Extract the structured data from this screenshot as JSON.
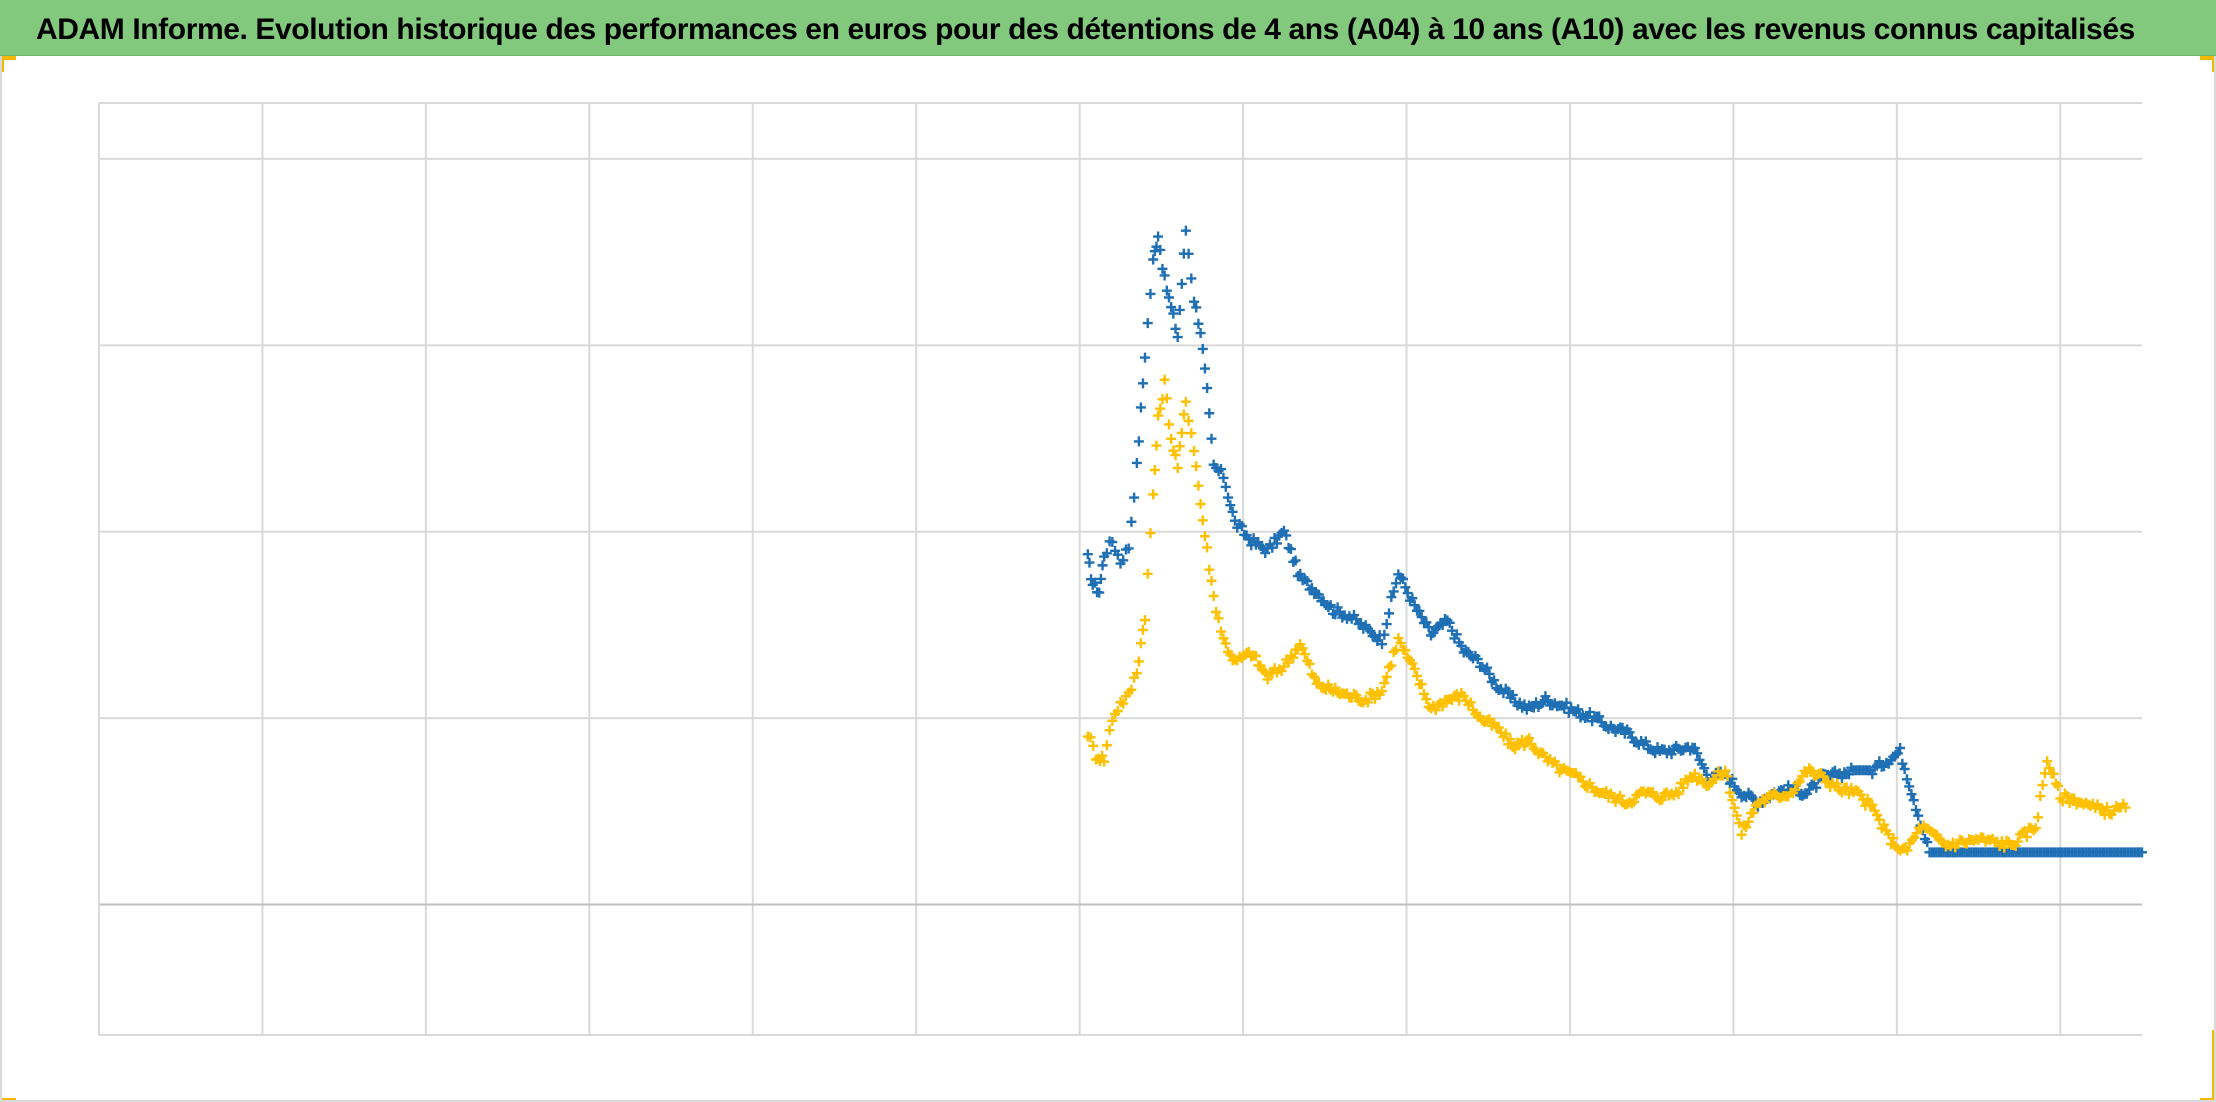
{
  "title": "ADAM Informe. Evolution historique des performances en euros pour des détentions de 4 ans (A04) à 10 ans (A10) avec les revenus connus capitalisés",
  "colors": {
    "title_background": "#82c97e",
    "corner_accent": "#f5b800",
    "gridline": "#d9d9d9",
    "axis_line": "#bfbfbf"
  },
  "chart_data": {
    "type": "scatter",
    "title": "ADAM Informe. Evolution historique des performances en euros pour des détentions de 4 ans (A04) à 10 ans (A10) avec les revenus connus capitalisés",
    "xlabel": "",
    "ylabel": "",
    "xlim": [
      0,
      12.5
    ],
    "ylim": [
      -0.7,
      4.3
    ],
    "x_gridlines": 13,
    "y_gridlines": [
      0,
      1,
      2,
      3,
      4
    ],
    "grid": true,
    "legend": "none",
    "marker": "plus",
    "series": [
      {
        "color": "#1f6fb5",
        "x": [
          6.05,
          6.08,
          6.12,
          6.15,
          6.2,
          6.25,
          6.3,
          6.35,
          6.4,
          6.45,
          6.48,
          6.52,
          6.56,
          6.6,
          6.65,
          6.7,
          6.74,
          6.78,
          6.82,
          6.88,
          6.95,
          7.05,
          7.15,
          7.25,
          7.35,
          7.45,
          7.55,
          7.65,
          7.75,
          7.85,
          7.95,
          8.05,
          8.15,
          8.25,
          8.35,
          8.45,
          8.55,
          8.65,
          8.75,
          8.85,
          8.95,
          9.05,
          9.15,
          9.25,
          9.35,
          9.45,
          9.55,
          9.65,
          9.75,
          9.85,
          9.95,
          10.05,
          10.15,
          10.25,
          10.35,
          10.45,
          10.55,
          10.65,
          10.75,
          10.85,
          10.95,
          11.02,
          11.2,
          11.5,
          11.8,
          12.1,
          12.4,
          12.5
        ],
        "y": [
          1.86,
          1.72,
          1.68,
          1.88,
          1.95,
          1.84,
          1.92,
          2.35,
          2.95,
          3.45,
          3.6,
          3.35,
          3.2,
          3.05,
          3.62,
          3.25,
          3.08,
          2.75,
          2.35,
          2.3,
          2.05,
          1.95,
          1.9,
          2.0,
          1.75,
          1.68,
          1.58,
          1.55,
          1.48,
          1.42,
          1.78,
          1.6,
          1.45,
          1.52,
          1.36,
          1.3,
          1.18,
          1.1,
          1.05,
          1.1,
          1.07,
          1.03,
          1.0,
          0.95,
          0.92,
          0.86,
          0.82,
          0.83,
          0.85,
          0.68,
          0.7,
          0.6,
          0.55,
          0.6,
          0.62,
          0.6,
          0.68,
          0.7,
          0.72,
          0.72,
          0.78,
          0.82,
          0.28,
          0.28,
          0.28,
          0.28,
          0.28,
          0.28
        ]
      },
      {
        "color": "#ffc000",
        "x": [
          6.05,
          6.1,
          6.15,
          6.2,
          6.25,
          6.3,
          6.35,
          6.4,
          6.45,
          6.48,
          6.52,
          6.56,
          6.6,
          6.65,
          6.7,
          6.74,
          6.78,
          6.82,
          6.88,
          6.95,
          7.05,
          7.15,
          7.25,
          7.35,
          7.45,
          7.55,
          7.65,
          7.75,
          7.85,
          7.95,
          8.05,
          8.15,
          8.25,
          8.35,
          8.45,
          8.55,
          8.65,
          8.75,
          8.85,
          8.95,
          9.05,
          9.15,
          9.25,
          9.35,
          9.45,
          9.55,
          9.65,
          9.75,
          9.85,
          9.95,
          10.05,
          10.15,
          10.25,
          10.35,
          10.45,
          10.55,
          10.65,
          10.75,
          10.85,
          10.95,
          11.05,
          11.15,
          11.3,
          11.5,
          11.7,
          11.85,
          11.92,
          12.0,
          12.1,
          12.2,
          12.3,
          12.4
        ],
        "y": [
          0.92,
          0.8,
          0.78,
          1.0,
          1.08,
          1.12,
          1.25,
          1.55,
          2.2,
          2.6,
          2.8,
          2.5,
          2.35,
          2.7,
          2.45,
          2.15,
          1.9,
          1.65,
          1.42,
          1.3,
          1.35,
          1.22,
          1.28,
          1.4,
          1.18,
          1.15,
          1.12,
          1.1,
          1.15,
          1.42,
          1.25,
          1.05,
          1.1,
          1.12,
          1.0,
          0.95,
          0.85,
          0.88,
          0.78,
          0.72,
          0.68,
          0.62,
          0.58,
          0.55,
          0.6,
          0.58,
          0.6,
          0.7,
          0.65,
          0.72,
          0.38,
          0.55,
          0.58,
          0.6,
          0.72,
          0.68,
          0.62,
          0.6,
          0.52,
          0.36,
          0.28,
          0.42,
          0.32,
          0.35,
          0.32,
          0.42,
          0.78,
          0.58,
          0.56,
          0.52,
          0.5,
          0.52
        ]
      }
    ]
  }
}
